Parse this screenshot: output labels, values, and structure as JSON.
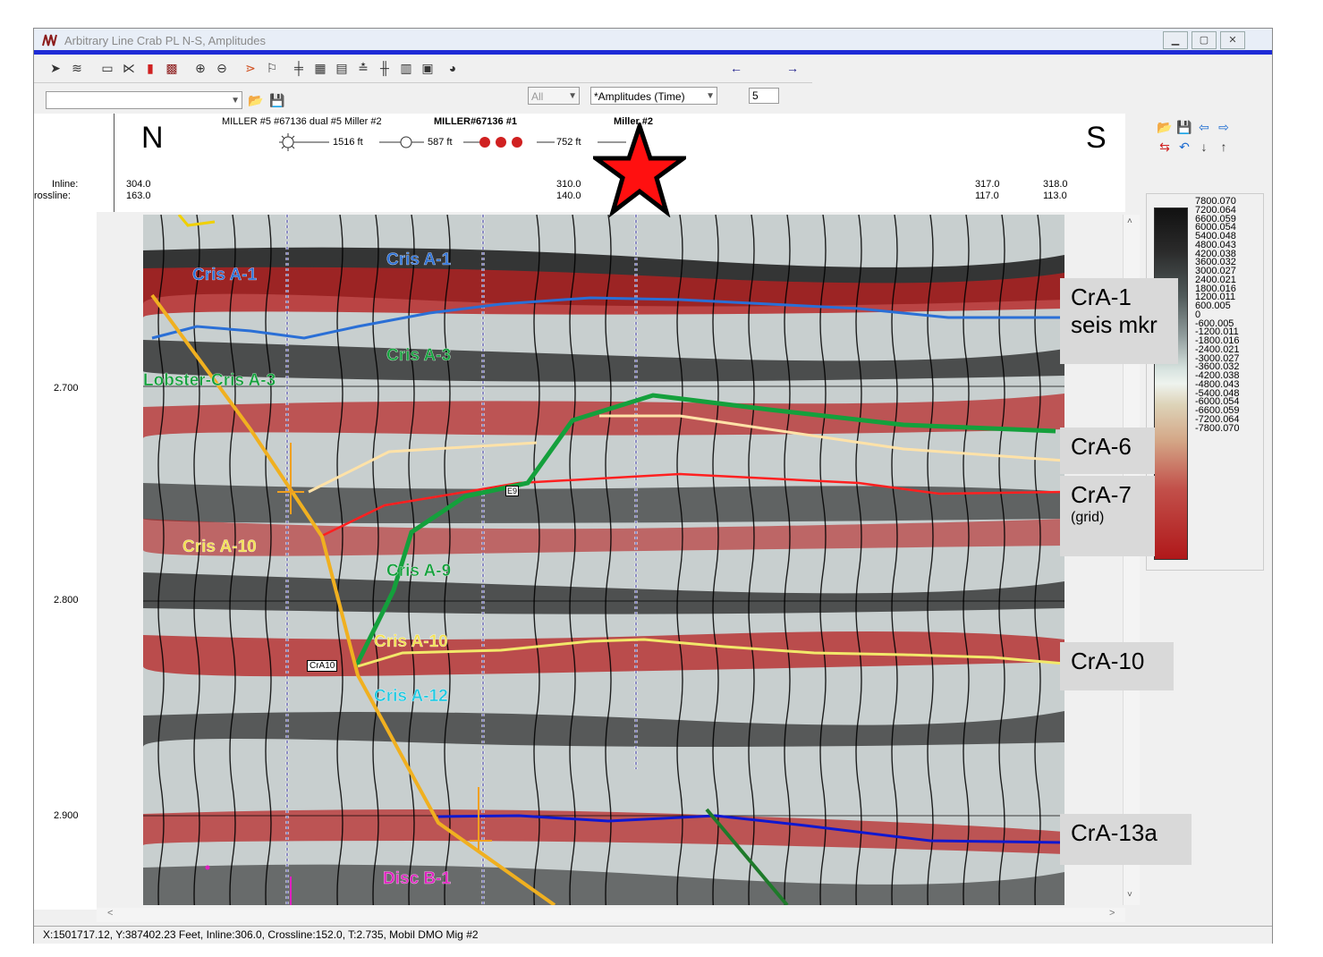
{
  "window": {
    "title": "Arbitrary Line Crab PL N-S, Amplitudes",
    "controls": [
      "minimize",
      "maximize",
      "close"
    ]
  },
  "toolbar": {
    "filter_value": "All",
    "display_value": "*Amplitudes (Time)",
    "step_value": "5",
    "path_value": ""
  },
  "header": {
    "well_labels_text": "MILLER #5  #67136 dual #5  Miller #2",
    "well_labels_text2": "MILLER#67136 #1",
    "well_miller2": "Miller #2",
    "dist1": "1516 ft",
    "dist2": "587 ft",
    "dist3": "752 ft",
    "north": "N",
    "south": "S",
    "inline_label": "Inline:",
    "crossline_label": "rossline:",
    "ticks": [
      {
        "inline": "304.0",
        "crossline": "163.0"
      },
      {
        "inline": "310.0",
        "crossline": "140.0"
      },
      {
        "inline": "317.0",
        "crossline": "117.0"
      },
      {
        "inline": "318.0",
        "crossline": "113.0"
      }
    ]
  },
  "time_axis": [
    "2.700",
    "2.800",
    "2.900"
  ],
  "horizon_labels": {
    "cris_a1_left": "Cris A-1",
    "cris_a1_mid": "Cris A-1",
    "cris_a3": "Cris A-3",
    "lobster": "Lobster-Cris A-3",
    "cris_a10_left": "Cris A-10",
    "cris_a9": "Cris A-9",
    "cris_a10_mid": "Cris A-10",
    "cris_a12": "Cris A-12",
    "disc_b1": "Disc B-1",
    "e9": "E9",
    "cra10_tag": "CrA10"
  },
  "annotations": {
    "cra1_line1": "CrA-1",
    "cra1_line2": "seis mkr",
    "cra6": "CrA-6",
    "cra7": "CrA-7",
    "cra7_sub": "(grid)",
    "cra10": "CrA-10",
    "cra13a": "CrA-13a"
  },
  "colorbar_values": [
    "7800.070",
    "7200.064",
    "6600.059",
    "6000.054",
    "5400.048",
    "4800.043",
    "4200.038",
    "3600.032",
    "3000.027",
    "2400.021",
    "1800.016",
    "1200.011",
    "600.005",
    "0",
    "-600.005",
    "-1200.011",
    "-1800.016",
    "-2400.021",
    "-3000.027",
    "-3600.032",
    "-4200.038",
    "-4800.043",
    "-5400.048",
    "-6000.054",
    "-6600.059",
    "-7200.064",
    "-7800.070"
  ],
  "status": {
    "text": "X:1501717.12, Y:387402.23 Feet,  Inline:306.0,  Crossline:152.0,  T:2.735,  Mobil DMO Mig #2"
  },
  "colors": {
    "accent_blue": "#1e2bd6",
    "cris_a1": "#2a6fd6",
    "cris_a3_green": "#14a03c",
    "cris_a10_yellow": "#f2e86a",
    "fault_orange": "#f0b020",
    "star_red": "#ff1010"
  }
}
